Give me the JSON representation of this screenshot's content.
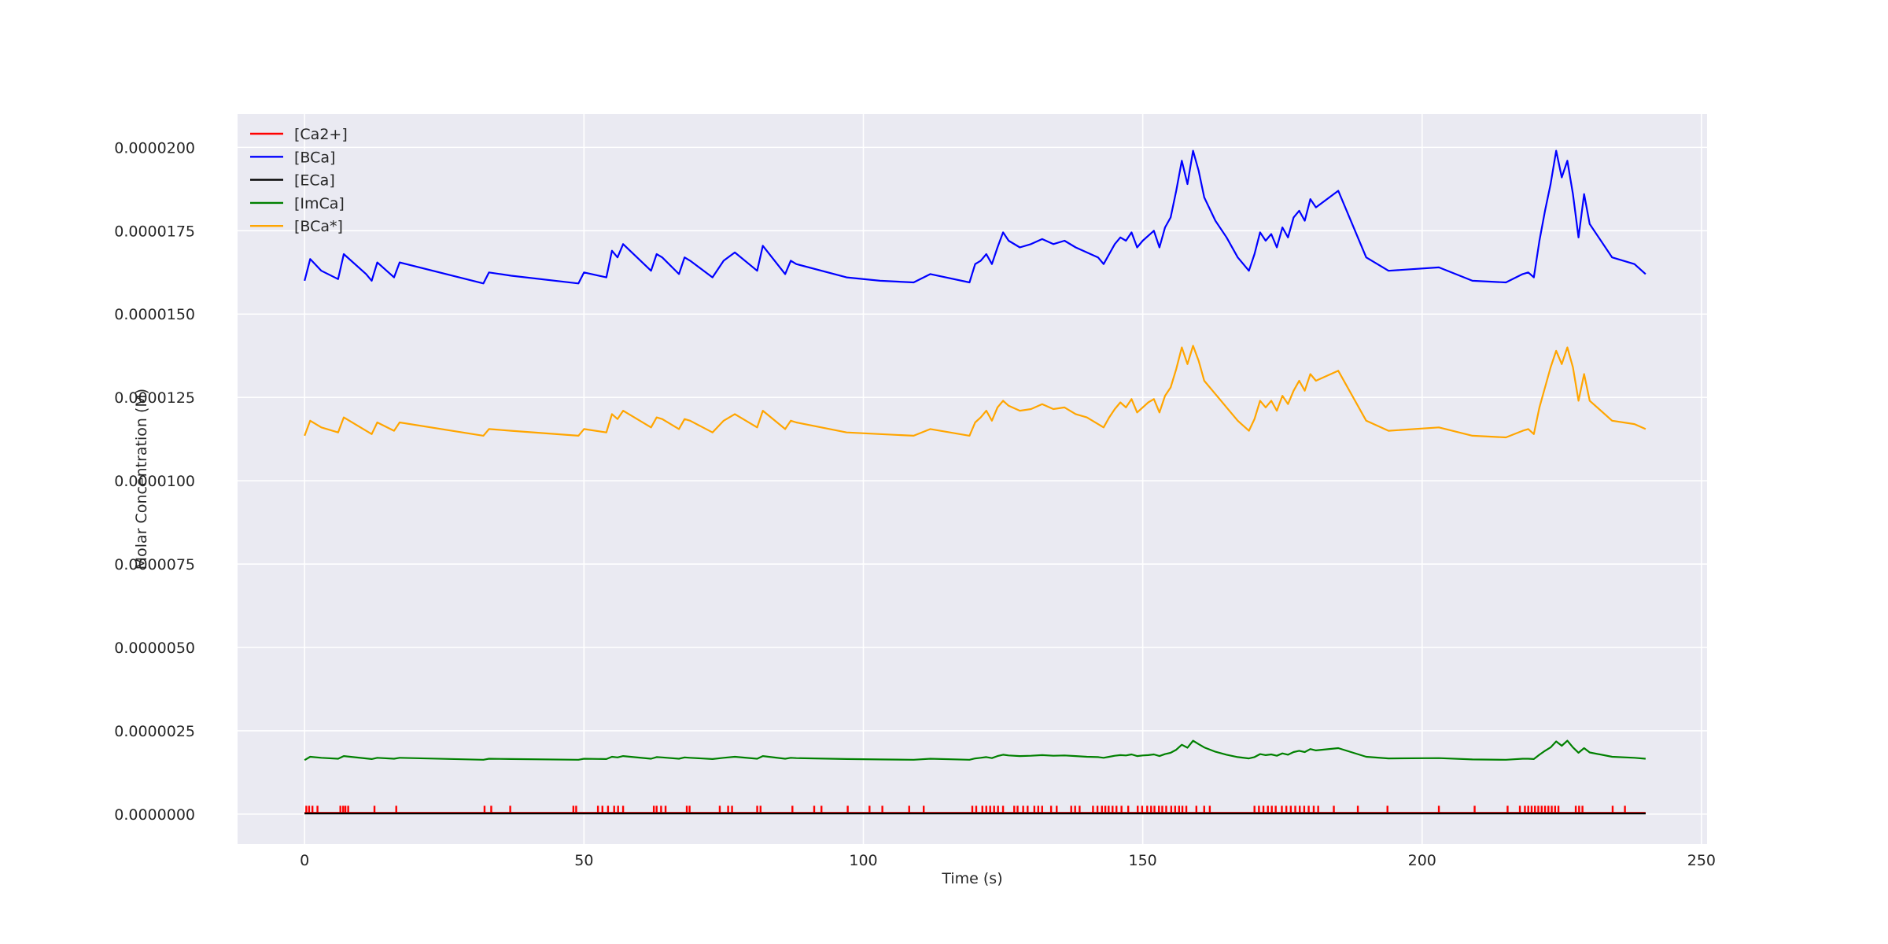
{
  "chart_data": {
    "type": "line",
    "title": "",
    "xlabel": "Time (s)",
    "ylabel": "Molar Concentration (M)",
    "xlim": [
      -12,
      251
    ],
    "ylim": [
      -9e-07,
      2.1e-05
    ],
    "xticks": [
      0,
      50,
      100,
      150,
      200,
      250
    ],
    "xtick_labels": [
      "0",
      "50",
      "100",
      "150",
      "200",
      "250"
    ],
    "yticks": [
      0,
      2.5e-06,
      5e-06,
      7.5e-06,
      1e-05,
      1.25e-05,
      1.5e-05,
      1.75e-05,
      2e-05
    ],
    "ytick_labels": [
      "0.0000000",
      "0.0000025",
      "0.0000050",
      "0.0000075",
      "0.0000100",
      "0.0000125",
      "0.0000150",
      "0.0000175",
      "0.0000200"
    ],
    "grid": true,
    "legend_position": "top-left",
    "background": "#eaeaf2",
    "x": [
      0,
      1,
      3,
      6,
      7,
      11,
      12,
      13,
      16,
      17,
      32,
      33,
      37,
      49,
      50,
      54,
      55,
      56,
      57,
      62,
      63,
      64,
      67,
      68,
      69,
      73,
      75,
      77,
      81,
      82,
      86,
      87,
      88,
      97,
      103,
      109,
      112,
      119,
      120,
      121,
      122,
      123,
      124,
      125,
      126,
      128,
      130,
      132,
      134,
      136,
      138,
      140,
      142,
      143,
      144,
      145,
      146,
      147,
      148,
      149,
      150,
      151,
      152,
      153,
      154,
      155,
      156,
      157,
      158,
      159,
      160,
      161,
      163,
      165,
      167,
      169,
      170,
      171,
      172,
      173,
      174,
      175,
      176,
      177,
      178,
      179,
      180,
      181,
      185,
      190,
      194,
      203,
      209,
      215,
      218,
      219,
      220,
      221,
      222,
      223,
      224,
      225,
      226,
      227,
      228,
      229,
      230,
      234,
      238,
      240
    ],
    "series": [
      {
        "name": "[Ca2+]",
        "color": "#ff0000",
        "baseline": 4e-08,
        "spike_height": 2.5e-07,
        "spike_times": [
          0.3,
          0.8,
          1.4,
          2.3,
          6.4,
          6.9,
          7.3,
          7.8,
          12.5,
          16.4,
          32.2,
          33.4,
          36.8,
          48.1,
          48.6,
          52.5,
          53.3,
          54.3,
          55.4,
          56.1,
          57.0,
          62.5,
          63.0,
          63.8,
          64.6,
          68.4,
          68.9,
          74.3,
          75.8,
          76.5,
          81.0,
          81.6,
          87.3,
          91.2,
          92.5,
          97.2,
          101.1,
          103.4,
          108.2,
          110.8,
          119.5,
          120.2,
          121.3,
          122.0,
          122.7,
          123.4,
          124.1,
          125.0,
          127.0,
          127.6,
          128.6,
          129.4,
          130.6,
          131.3,
          132.0,
          133.6,
          134.6,
          137.2,
          137.9,
          138.7,
          141.1,
          141.9,
          142.7,
          143.3,
          143.9,
          144.6,
          145.3,
          146.2,
          147.4,
          149.1,
          149.9,
          150.8,
          151.5,
          152.1,
          152.9,
          153.5,
          154.2,
          155.1,
          155.8,
          156.5,
          157.1,
          157.8,
          159.6,
          161.0,
          162.0,
          170.0,
          170.8,
          171.6,
          172.4,
          173.1,
          173.8,
          174.9,
          175.7,
          176.5,
          177.3,
          178.1,
          178.9,
          179.7,
          180.6,
          181.4,
          184.2,
          188.5,
          193.8,
          203.0,
          209.4,
          215.3,
          217.5,
          218.4,
          219.0,
          219.6,
          220.2,
          220.8,
          221.4,
          222.0,
          222.6,
          223.2,
          223.8,
          224.4,
          227.5,
          228.1,
          228.7,
          234.1,
          236.3
        ]
      },
      {
        "name": "[BCa]",
        "color": "#0000ff",
        "values": [
          1.6e-05,
          1.665e-05,
          1.63e-05,
          1.605e-05,
          1.68e-05,
          1.62e-05,
          1.6e-05,
          1.655e-05,
          1.61e-05,
          1.655e-05,
          1.592e-05,
          1.625e-05,
          1.615e-05,
          1.592e-05,
          1.625e-05,
          1.61e-05,
          1.69e-05,
          1.67e-05,
          1.71e-05,
          1.63e-05,
          1.68e-05,
          1.67e-05,
          1.62e-05,
          1.67e-05,
          1.66e-05,
          1.61e-05,
          1.66e-05,
          1.685e-05,
          1.63e-05,
          1.705e-05,
          1.62e-05,
          1.66e-05,
          1.65e-05,
          1.61e-05,
          1.6e-05,
          1.595e-05,
          1.62e-05,
          1.595e-05,
          1.65e-05,
          1.66e-05,
          1.68e-05,
          1.65e-05,
          1.7e-05,
          1.745e-05,
          1.72e-05,
          1.7e-05,
          1.71e-05,
          1.725e-05,
          1.71e-05,
          1.72e-05,
          1.7e-05,
          1.685e-05,
          1.67e-05,
          1.65e-05,
          1.68e-05,
          1.71e-05,
          1.73e-05,
          1.72e-05,
          1.745e-05,
          1.7e-05,
          1.72e-05,
          1.735e-05,
          1.75e-05,
          1.7e-05,
          1.76e-05,
          1.79e-05,
          1.87e-05,
          1.96e-05,
          1.89e-05,
          1.99e-05,
          1.93e-05,
          1.85e-05,
          1.78e-05,
          1.73e-05,
          1.67e-05,
          1.63e-05,
          1.68e-05,
          1.745e-05,
          1.72e-05,
          1.74e-05,
          1.7e-05,
          1.76e-05,
          1.73e-05,
          1.79e-05,
          1.81e-05,
          1.78e-05,
          1.845e-05,
          1.82e-05,
          1.87e-05,
          1.67e-05,
          1.63e-05,
          1.64e-05,
          1.6e-05,
          1.595e-05,
          1.62e-05,
          1.625e-05,
          1.61e-05,
          1.72e-05,
          1.81e-05,
          1.89e-05,
          1.99e-05,
          1.91e-05,
          1.96e-05,
          1.86e-05,
          1.73e-05,
          1.86e-05,
          1.77e-05,
          1.67e-05,
          1.65e-05,
          1.62e-05
        ]
      },
      {
        "name": "[ECa]",
        "color": "#000000",
        "values": [
          2e-08,
          2e-08,
          2e-08,
          2e-08,
          2e-08,
          2e-08,
          2e-08,
          2e-08,
          2e-08,
          2e-08,
          2e-08,
          2e-08,
          2e-08,
          2e-08,
          2e-08,
          2e-08,
          2e-08,
          2e-08,
          2e-08,
          2e-08,
          2e-08,
          2e-08,
          2e-08,
          2e-08,
          2e-08,
          2e-08,
          2e-08,
          2e-08,
          2e-08,
          2e-08,
          2e-08,
          2e-08,
          2e-08,
          2e-08,
          2e-08,
          2e-08,
          2e-08,
          2e-08,
          2e-08,
          2e-08,
          2e-08,
          2e-08,
          2e-08,
          2e-08,
          2e-08,
          2e-08,
          2e-08,
          2e-08,
          2e-08,
          2e-08,
          2e-08,
          2e-08,
          2e-08,
          2e-08,
          2e-08,
          2e-08,
          2e-08,
          2e-08,
          2e-08,
          2e-08,
          2e-08,
          2e-08,
          2e-08,
          2e-08,
          2e-08,
          2e-08,
          2e-08,
          2e-08,
          2e-08,
          2e-08,
          2e-08,
          2e-08,
          2e-08,
          2e-08,
          2e-08,
          2e-08,
          2e-08,
          2e-08,
          2e-08,
          2e-08,
          2e-08,
          2e-08,
          2e-08,
          2e-08,
          2e-08,
          2e-08,
          2e-08,
          2e-08,
          2e-08,
          2e-08,
          2e-08,
          2e-08,
          2e-08,
          2e-08,
          2e-08,
          2e-08,
          2e-08,
          2e-08,
          2e-08,
          2e-08,
          2e-08,
          2e-08,
          2e-08,
          2e-08,
          2e-08,
          2e-08,
          2e-08,
          2e-08,
          2e-08,
          2e-08
        ]
      },
      {
        "name": "[ImCa]",
        "color": "#008000",
        "values": [
          1.62e-06,
          1.72e-06,
          1.69e-06,
          1.66e-06,
          1.74e-06,
          1.67e-06,
          1.65e-06,
          1.69e-06,
          1.66e-06,
          1.69e-06,
          1.63e-06,
          1.66e-06,
          1.65e-06,
          1.63e-06,
          1.66e-06,
          1.65e-06,
          1.72e-06,
          1.7e-06,
          1.74e-06,
          1.66e-06,
          1.71e-06,
          1.7e-06,
          1.66e-06,
          1.7e-06,
          1.69e-06,
          1.65e-06,
          1.69e-06,
          1.72e-06,
          1.66e-06,
          1.74e-06,
          1.66e-06,
          1.69e-06,
          1.68e-06,
          1.65e-06,
          1.64e-06,
          1.63e-06,
          1.66e-06,
          1.63e-06,
          1.67e-06,
          1.69e-06,
          1.71e-06,
          1.68e-06,
          1.74e-06,
          1.78e-06,
          1.76e-06,
          1.74e-06,
          1.75e-06,
          1.77e-06,
          1.75e-06,
          1.76e-06,
          1.74e-06,
          1.72e-06,
          1.71e-06,
          1.69e-06,
          1.72e-06,
          1.75e-06,
          1.77e-06,
          1.76e-06,
          1.79e-06,
          1.74e-06,
          1.76e-06,
          1.77e-06,
          1.79e-06,
          1.74e-06,
          1.8e-06,
          1.84e-06,
          1.93e-06,
          2.08e-06,
          1.99e-06,
          2.2e-06,
          2.1e-06,
          2e-06,
          1.87e-06,
          1.78e-06,
          1.71e-06,
          1.67e-06,
          1.71e-06,
          1.8e-06,
          1.77e-06,
          1.79e-06,
          1.75e-06,
          1.82e-06,
          1.78e-06,
          1.86e-06,
          1.9e-06,
          1.86e-06,
          1.95e-06,
          1.91e-06,
          1.98e-06,
          1.72e-06,
          1.67e-06,
          1.68e-06,
          1.64e-06,
          1.63e-06,
          1.66e-06,
          1.66e-06,
          1.65e-06,
          1.78e-06,
          1.9e-06,
          2e-06,
          2.18e-06,
          2.05e-06,
          2.2e-06,
          2e-06,
          1.84e-06,
          1.98e-06,
          1.85e-06,
          1.72e-06,
          1.69e-06,
          1.66e-06
        ]
      },
      {
        "name": "[BCa*]",
        "color": "#ffa500",
        "values": [
          1.135e-05,
          1.18e-05,
          1.16e-05,
          1.145e-05,
          1.19e-05,
          1.15e-05,
          1.14e-05,
          1.175e-05,
          1.15e-05,
          1.175e-05,
          1.135e-05,
          1.155e-05,
          1.15e-05,
          1.135e-05,
          1.155e-05,
          1.145e-05,
          1.2e-05,
          1.185e-05,
          1.21e-05,
          1.16e-05,
          1.19e-05,
          1.185e-05,
          1.155e-05,
          1.185e-05,
          1.18e-05,
          1.145e-05,
          1.18e-05,
          1.2e-05,
          1.16e-05,
          1.21e-05,
          1.155e-05,
          1.18e-05,
          1.175e-05,
          1.145e-05,
          1.14e-05,
          1.135e-05,
          1.155e-05,
          1.135e-05,
          1.175e-05,
          1.19e-05,
          1.21e-05,
          1.18e-05,
          1.22e-05,
          1.24e-05,
          1.225e-05,
          1.21e-05,
          1.215e-05,
          1.23e-05,
          1.215e-05,
          1.22e-05,
          1.2e-05,
          1.19e-05,
          1.17e-05,
          1.16e-05,
          1.19e-05,
          1.215e-05,
          1.235e-05,
          1.22e-05,
          1.245e-05,
          1.205e-05,
          1.22e-05,
          1.235e-05,
          1.245e-05,
          1.205e-05,
          1.255e-05,
          1.28e-05,
          1.335e-05,
          1.4e-05,
          1.35e-05,
          1.405e-05,
          1.36e-05,
          1.3e-05,
          1.26e-05,
          1.22e-05,
          1.18e-05,
          1.15e-05,
          1.185e-05,
          1.24e-05,
          1.22e-05,
          1.24e-05,
          1.21e-05,
          1.255e-05,
          1.23e-05,
          1.27e-05,
          1.3e-05,
          1.27e-05,
          1.32e-05,
          1.3e-05,
          1.33e-05,
          1.18e-05,
          1.15e-05,
          1.16e-05,
          1.135e-05,
          1.13e-05,
          1.15e-05,
          1.155e-05,
          1.14e-05,
          1.22e-05,
          1.28e-05,
          1.34e-05,
          1.39e-05,
          1.35e-05,
          1.4e-05,
          1.34e-05,
          1.24e-05,
          1.32e-05,
          1.24e-05,
          1.18e-05,
          1.17e-05,
          1.155e-05
        ]
      }
    ]
  }
}
